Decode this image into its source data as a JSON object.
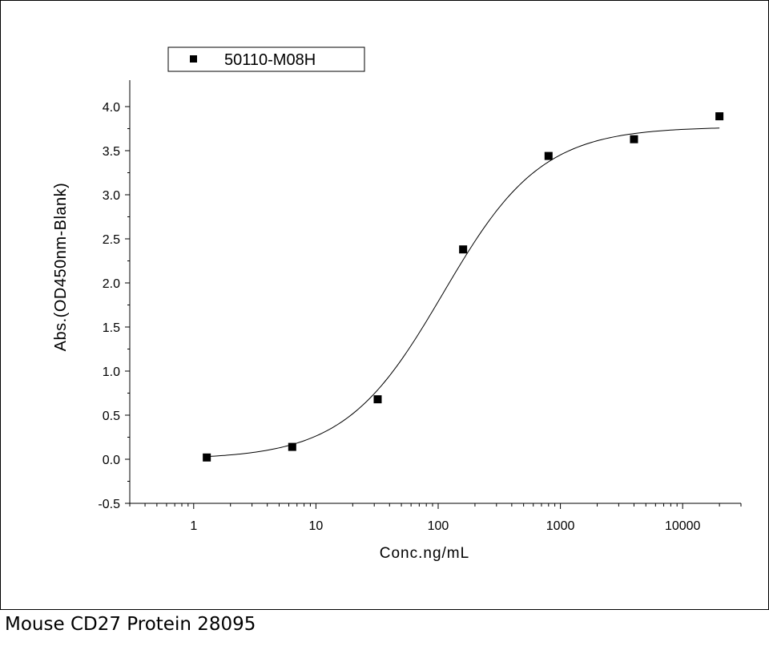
{
  "caption": "Mouse CD27 Protein 28095",
  "chart_data": {
    "type": "scatter",
    "xscale": "log",
    "xlabel": "Conc.ng/mL",
    "ylabel": "Abs.(OD450nm-Blank)",
    "xlim": [
      0.3,
      30000
    ],
    "ylim": [
      -0.5,
      4.3
    ],
    "x_ticks": [
      1,
      10,
      100,
      1000,
      10000
    ],
    "x_tick_labels": [
      "1",
      "10",
      "100",
      "1000",
      "10000"
    ],
    "y_ticks": [
      -0.5,
      0.0,
      0.5,
      1.0,
      1.5,
      2.0,
      2.5,
      3.0,
      3.5,
      4.0
    ],
    "y_tick_labels": [
      "-0.5",
      "0.0",
      "0.5",
      "1.0",
      "1.5",
      "2.0",
      "2.5",
      "3.0",
      "3.5",
      "4.0"
    ],
    "legend_position": "top-left",
    "series": [
      {
        "name": "50110-M08H",
        "marker": "square",
        "color": "#000000",
        "x": [
          1.28,
          6.4,
          32,
          160,
          800,
          4000,
          20000
        ],
        "y": [
          0.02,
          0.14,
          0.68,
          2.38,
          3.44,
          3.63,
          3.89
        ]
      }
    ],
    "fit_curve": {
      "model": "4PL",
      "bottom": 0.0,
      "top": 3.77,
      "ec50": 110,
      "hill": 1.08,
      "color": "#000000"
    }
  }
}
